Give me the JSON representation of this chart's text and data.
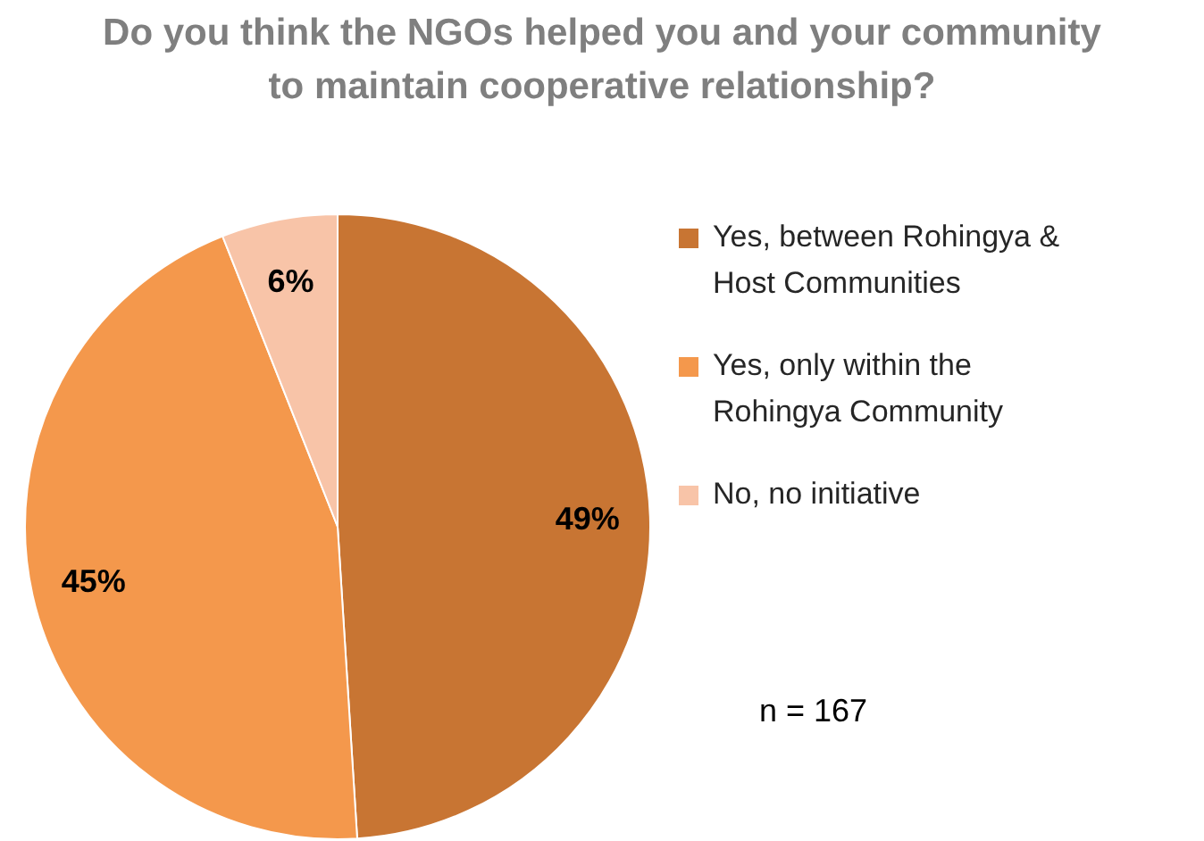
{
  "chart_data": {
    "type": "pie",
    "title": "Do you think the NGOs helped you and your community to maintain cooperative relationship?",
    "categories": [
      "Yes, between Rohingya & Host Communities",
      "Yes, only within the Rohingya Community",
      "No, no initiative"
    ],
    "values": [
      49,
      45,
      6
    ],
    "colors": [
      "#c87533",
      "#f4984c",
      "#f8c4a8"
    ],
    "value_labels": [
      "49%",
      "45%",
      "6%"
    ],
    "legend": "right",
    "annotations": [
      "n = 167"
    ]
  }
}
